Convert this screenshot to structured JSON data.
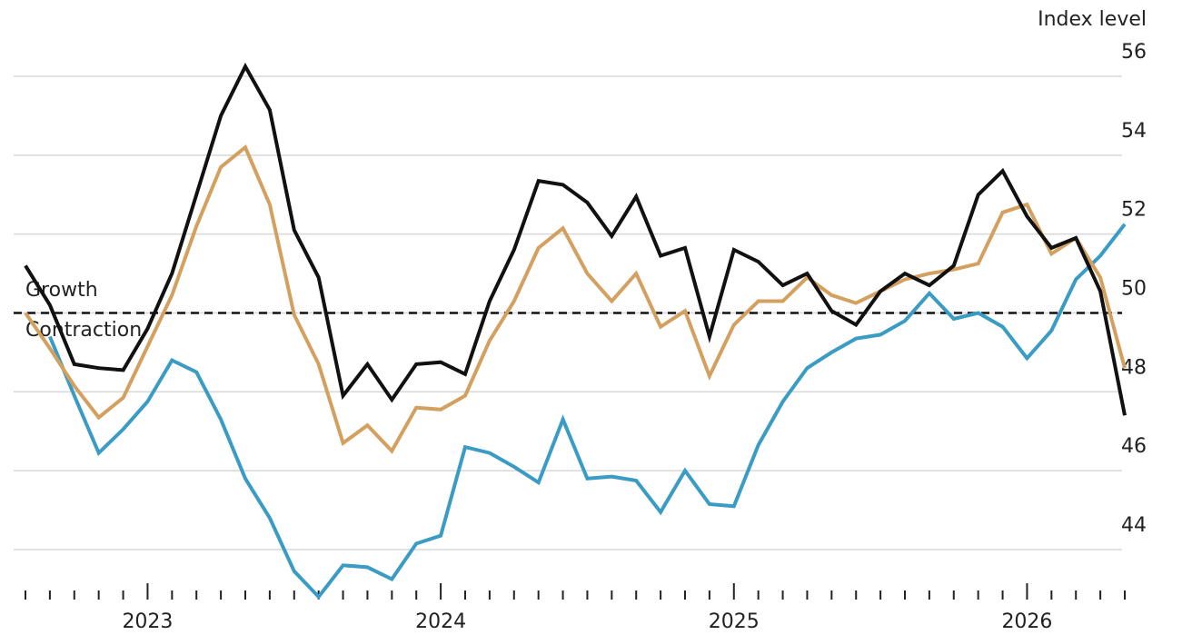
{
  "chart_data": {
    "type": "line",
    "axis_label": "Index level",
    "annotations": [
      "Growth",
      "Contraction"
    ],
    "reference_line": 50,
    "categories": [
      null,
      null,
      null,
      null,
      null,
      "2023",
      null,
      null,
      null,
      null,
      null,
      null,
      null,
      null,
      null,
      null,
      null,
      "2024",
      null,
      null,
      null,
      null,
      null,
      null,
      null,
      null,
      null,
      null,
      null,
      "2025",
      null,
      null,
      null,
      null,
      null,
      null,
      null,
      null,
      null,
      null,
      null,
      "2026",
      null,
      null,
      null,
      null
    ],
    "series": [
      {
        "color": "#3a9cc4",
        "values": [
          null,
          49.4,
          47.9,
          46.45,
          47.05,
          47.75,
          48.8,
          48.5,
          47.3,
          45.8,
          44.8,
          43.45,
          42.8,
          43.6,
          43.55,
          43.25,
          44.15,
          44.35,
          46.6,
          46.45,
          46.1,
          45.7,
          47.3,
          45.8,
          45.85,
          45.75,
          44.95,
          46.0,
          45.15,
          45.1,
          46.65,
          47.75,
          48.6,
          49.0,
          49.35,
          49.45,
          49.8,
          50.5,
          49.85,
          50.0,
          49.65,
          48.85,
          49.55,
          50.85,
          51.45,
          52.25
        ]
      },
      {
        "color": "#d4a060",
        "values": [
          50.0,
          49.1,
          48.15,
          47.35,
          47.85,
          49.15,
          50.45,
          52.2,
          53.7,
          54.2,
          52.75,
          49.95,
          48.7,
          46.7,
          47.15,
          46.5,
          47.6,
          47.55,
          47.9,
          49.3,
          50.3,
          51.65,
          52.15,
          51.0,
          50.3,
          51.0,
          49.65,
          50.05,
          48.4,
          49.7,
          50.3,
          50.3,
          50.9,
          50.45,
          50.25,
          50.55,
          50.85,
          51.0,
          51.1,
          51.25,
          52.55,
          52.75,
          51.5,
          51.9,
          50.9,
          48.6
        ]
      },
      {
        "color": "#111111",
        "values": [
          51.2,
          50.2,
          48.7,
          48.6,
          48.55,
          49.6,
          51.0,
          53.0,
          55.0,
          56.25,
          55.15,
          52.1,
          50.9,
          47.9,
          48.7,
          47.8,
          48.7,
          48.75,
          48.45,
          50.3,
          51.6,
          53.35,
          53.25,
          52.8,
          51.95,
          52.95,
          51.45,
          51.65,
          49.4,
          51.6,
          51.3,
          50.7,
          51.0,
          50.05,
          49.7,
          50.55,
          51.0,
          50.7,
          51.2,
          53.0,
          53.6,
          52.45,
          51.65,
          51.9,
          50.55,
          47.4
        ]
      }
    ],
    "ylim": [
      42.8,
      56.6
    ],
    "yticks": [
      44,
      46,
      48,
      50,
      52,
      54,
      56
    ],
    "grid": true
  }
}
